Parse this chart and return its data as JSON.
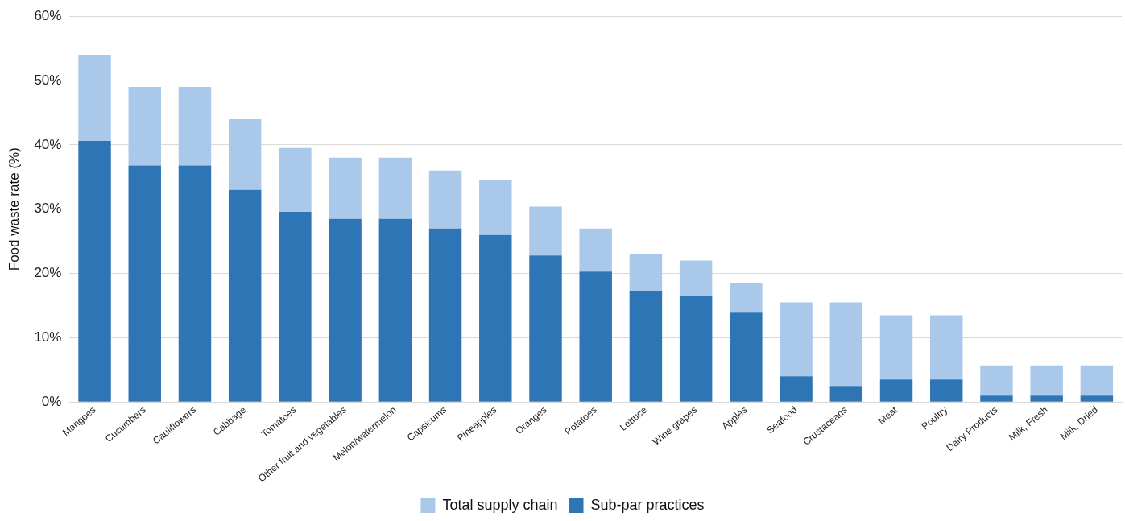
{
  "chart_data": {
    "type": "bar",
    "stacked": true,
    "ylabel": "Food waste rate (%)",
    "categories": [
      "Mangoes",
      "Cucumbers",
      "Cauliflowers",
      "Cabbage",
      "Tomatoes",
      "Other fruit and vegetables",
      "Melon/watermelon",
      "Capsicums",
      "Pineapples",
      "Oranges",
      "Potatoes",
      "Lettuce",
      "Wine grapes",
      "Apples",
      "Seafood",
      "Crustaceans",
      "Meat",
      "Poultry",
      "Dairy Products",
      "Milk, Fresh",
      "Milk, Dried"
    ],
    "series": [
      {
        "name": "Sub-par practices",
        "color": "#2e75b6",
        "values": [
          40.6,
          36.8,
          36.8,
          33,
          29.6,
          28.5,
          28.5,
          27,
          26,
          22.8,
          20.3,
          17.3,
          16.5,
          13.9,
          4,
          2.5,
          3.5,
          3.5,
          1,
          1,
          1
        ]
      },
      {
        "name": "Total supply chain",
        "color": "#a9c8ea",
        "values": [
          13.4,
          12.2,
          12.2,
          11,
          9.9,
          9.5,
          9.5,
          9,
          8.5,
          7.6,
          6.7,
          5.7,
          5.5,
          4.6,
          11.5,
          13,
          10,
          10,
          4.7,
          4.7,
          4.7
        ]
      }
    ],
    "ylim": [
      0,
      60
    ],
    "yticks": [
      {
        "value": 0,
        "label": "0%"
      },
      {
        "value": 10,
        "label": "10%"
      },
      {
        "value": 20,
        "label": "20%"
      },
      {
        "value": 30,
        "label": "30%"
      },
      {
        "value": 40,
        "label": "40%"
      },
      {
        "value": 50,
        "label": "50%"
      },
      {
        "value": 60,
        "label": "60%"
      }
    ],
    "grid": "y",
    "legend": "bottom"
  }
}
